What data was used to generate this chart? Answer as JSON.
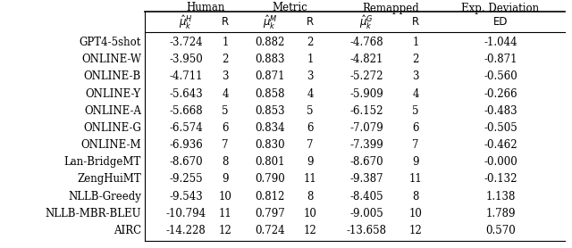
{
  "systems": [
    "GPT4-5shot",
    "ONLINE-W",
    "ONLINE-B",
    "ONLINE-Y",
    "ONLINE-A",
    "ONLINE-G",
    "ONLINE-M",
    "Lan-BridgeMT",
    "ZengHuiMT",
    "NLLB-Greedy",
    "NLLB-MBR-BLEU",
    "AIRC"
  ],
  "human_mu": [
    "-3.724",
    "-3.950",
    "-4.711",
    "-5.643",
    "-5.668",
    "-6.574",
    "-6.936",
    "-8.670",
    "-9.255",
    "-9.543",
    "-10.794",
    "-14.228"
  ],
  "human_r": [
    "1",
    "2",
    "3",
    "4",
    "5",
    "6",
    "7",
    "8",
    "9",
    "10",
    "11",
    "12"
  ],
  "metric_mu": [
    "0.882",
    "0.883",
    "0.871",
    "0.858",
    "0.853",
    "0.834",
    "0.830",
    "0.801",
    "0.790",
    "0.812",
    "0.797",
    "0.724"
  ],
  "metric_r": [
    "2",
    "1",
    "3",
    "4",
    "5",
    "6",
    "7",
    "9",
    "11",
    "8",
    "10",
    "12"
  ],
  "remapped_mu": [
    "-4.768",
    "-4.821",
    "-5.272",
    "-5.909",
    "-6.152",
    "-7.079",
    "-7.399",
    "-8.670",
    "-9.387",
    "-8.405",
    "-9.005",
    "-13.658"
  ],
  "remapped_r": [
    "1",
    "2",
    "3",
    "4",
    "5",
    "6",
    "7",
    "9",
    "11",
    "8",
    "10",
    "12"
  ],
  "ed": [
    "-1.044",
    "-0.871",
    "-0.560",
    "-0.266",
    "-0.483",
    "-0.505",
    "-0.462",
    "-0.000",
    "-0.132",
    "1.138",
    "1.789",
    "0.570"
  ],
  "background_color": "#ffffff",
  "font_size": 8.5,
  "header_font_size": 8.5
}
